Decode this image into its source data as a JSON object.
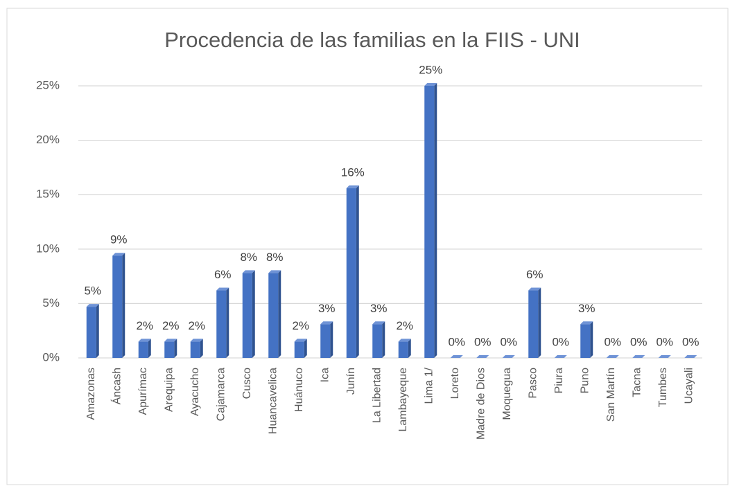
{
  "chart_data": {
    "type": "bar",
    "title": "Procedencia de las familias en la FIIS - UNI",
    "categories": [
      "Amazonas",
      "Áncash",
      "Apurímac",
      "Arequipa",
      "Ayacucho",
      "Cajamarca",
      "Cusco",
      "Huancavelica",
      "Huánuco",
      "Ica",
      "Junín",
      "La Libertad",
      "Lambayeque",
      "Lima 1/",
      "Loreto",
      "Madre de Dios",
      "Moquegua",
      "Pasco",
      "Piura",
      "Puno",
      "San Martín",
      "Tacna",
      "Tumbes",
      "Ucayali"
    ],
    "values": [
      4.7,
      9.4,
      1.5,
      1.5,
      1.5,
      6.2,
      7.8,
      7.8,
      1.5,
      3.1,
      15.6,
      3.1,
      1.5,
      25,
      0,
      0,
      0,
      6.2,
      0,
      3.1,
      0,
      0,
      0,
      0
    ],
    "value_labels": [
      "5%",
      "9%",
      "2%",
      "2%",
      "2%",
      "6%",
      "8%",
      "8%",
      "2%",
      "3%",
      "16%",
      "3%",
      "2%",
      "25%",
      "0%",
      "0%",
      "0%",
      "6%",
      "0%",
      "3%",
      "0%",
      "0%",
      "0%",
      "0%"
    ],
    "color": "#4472c4",
    "ylim": [
      0,
      25
    ],
    "yticks": [
      {
        "value": 0,
        "label": "0%"
      },
      {
        "value": 5,
        "label": "5%"
      },
      {
        "value": 10,
        "label": "10%"
      },
      {
        "value": 15,
        "label": "15%"
      },
      {
        "value": 20,
        "label": "20%"
      },
      {
        "value": 25,
        "label": "25%"
      }
    ],
    "grid": true
  }
}
